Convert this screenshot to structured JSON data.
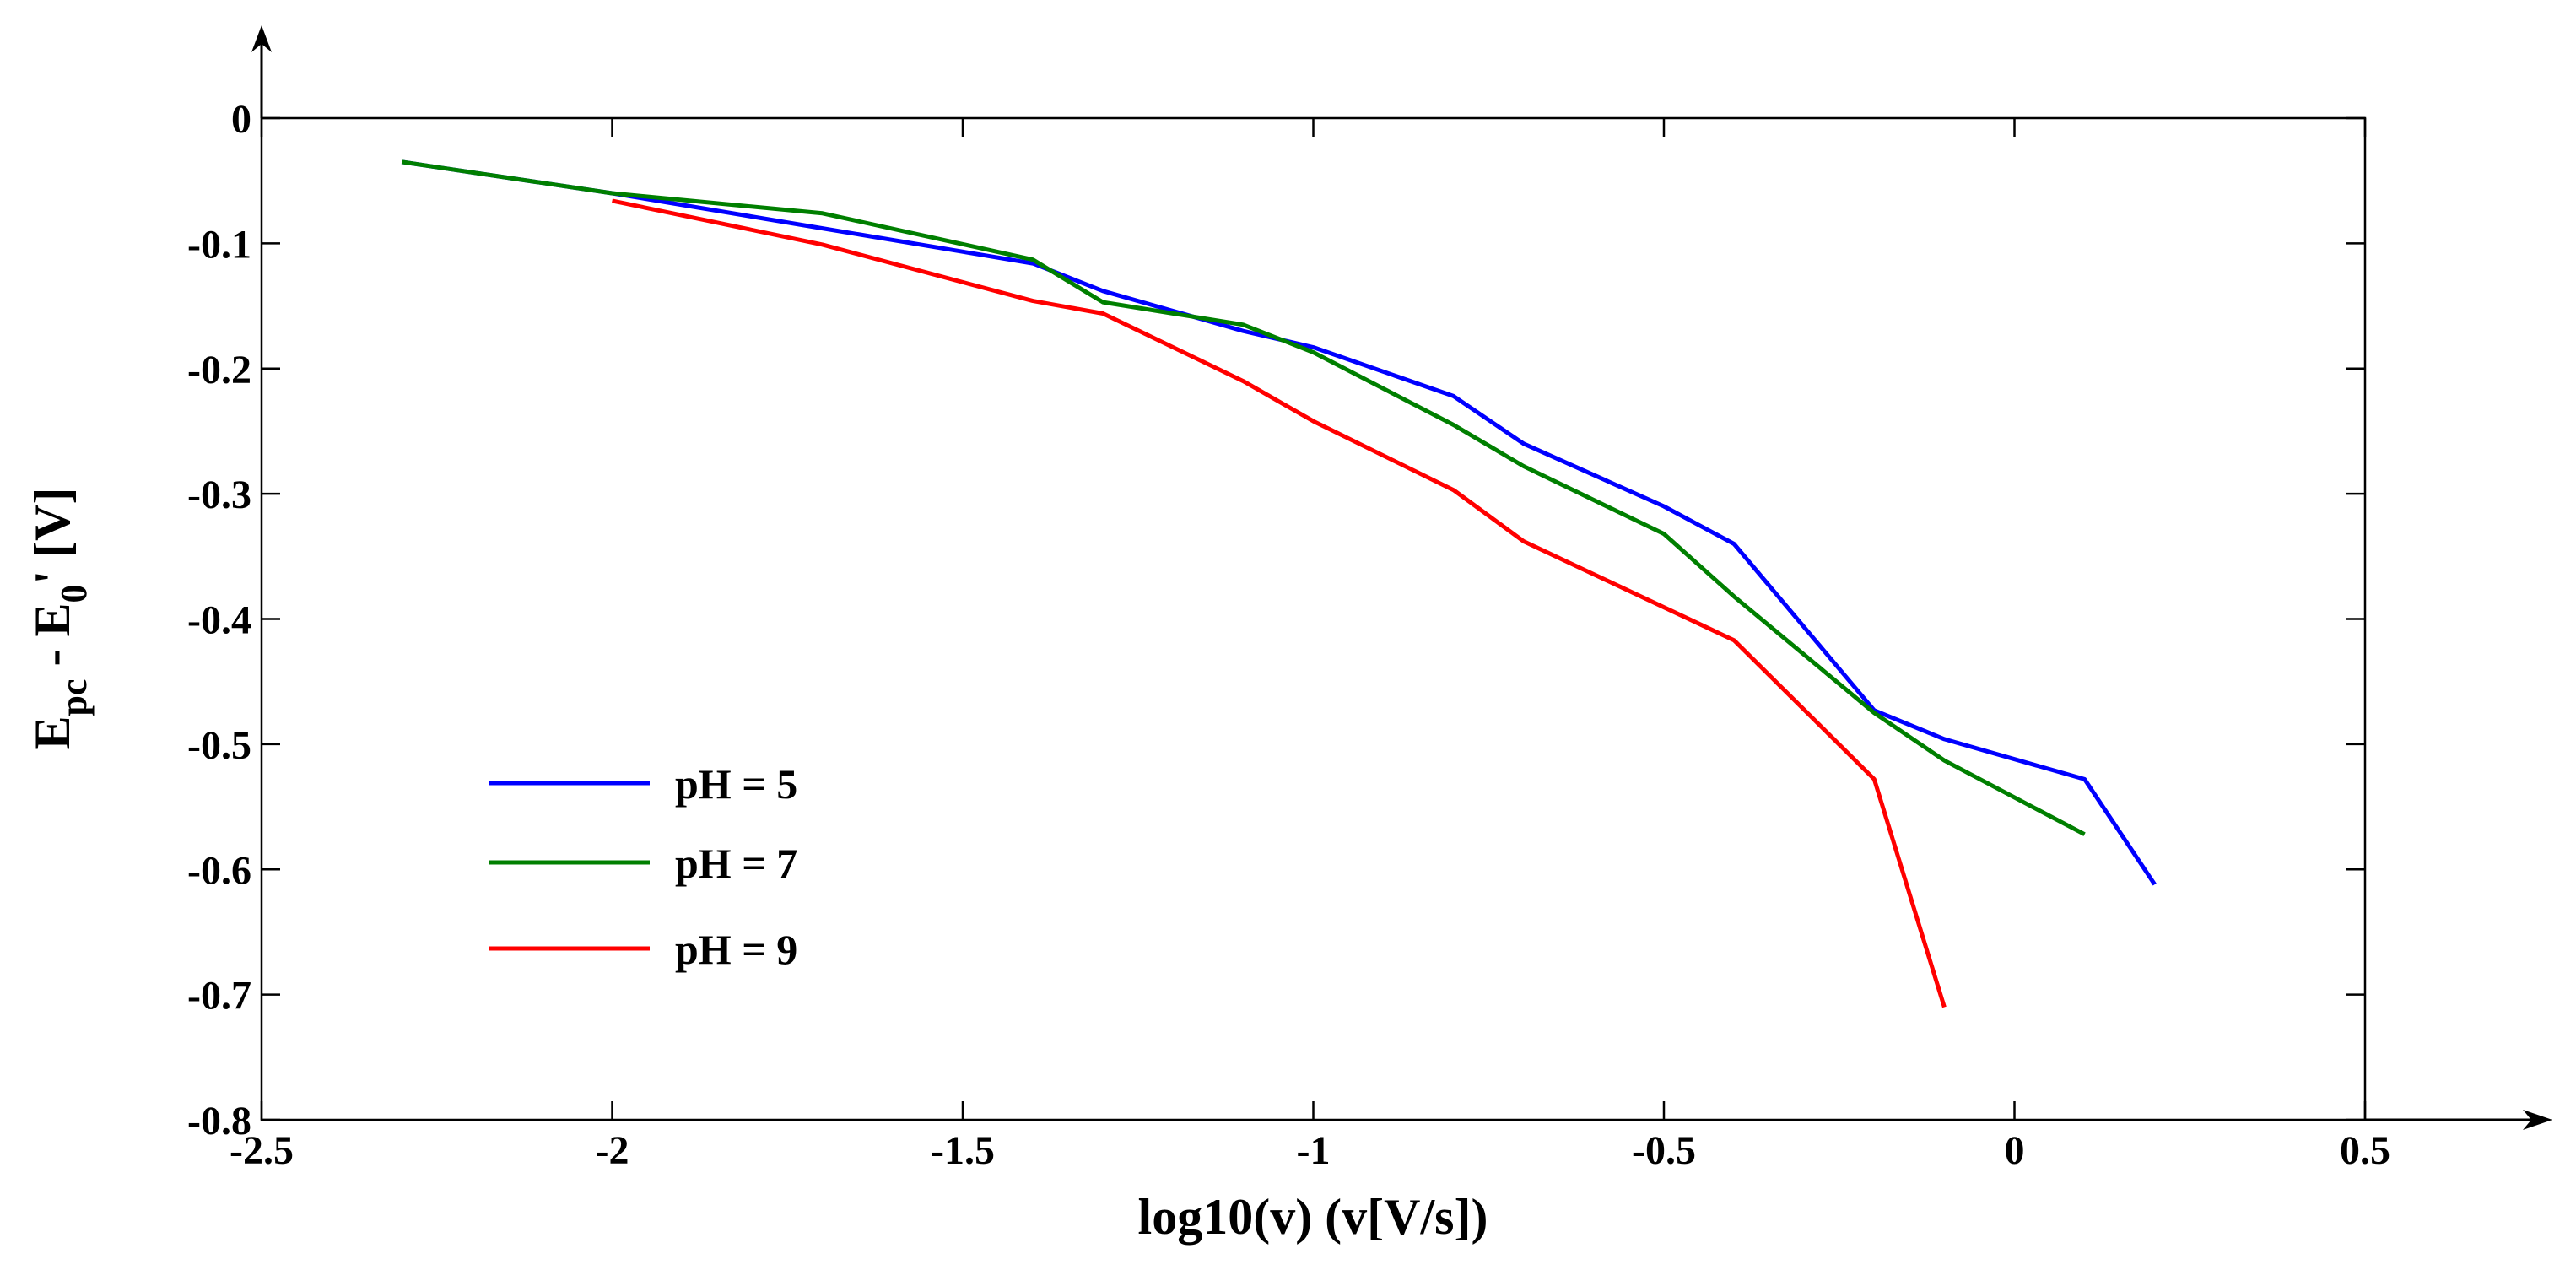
{
  "chart_data": {
    "type": "line",
    "title": "",
    "xlabel": "log10(v) (v[V/s])",
    "ylabel": {
      "main": "E",
      "sub1": "pc",
      "middle": " - E",
      "sub2": "0",
      "end": "' [V]"
    },
    "xlim": [
      -2.5,
      0.5
    ],
    "ylim": [
      -0.8,
      0
    ],
    "xticks": [
      -2.5,
      -2,
      -1.5,
      -1,
      -0.5,
      0,
      0.5
    ],
    "yticks": [
      0,
      -0.1,
      -0.2,
      -0.3,
      -0.4,
      -0.5,
      -0.6,
      -0.7,
      -0.8
    ],
    "xtick_labels": [
      "-2.5",
      "-2",
      "-1.5",
      "-1",
      "-0.5",
      "0",
      "0.5"
    ],
    "ytick_labels": [
      "0",
      "-0.1",
      "-0.2",
      "-0.3",
      "-0.4",
      "-0.5",
      "-0.6",
      "-0.7",
      "-0.8"
    ],
    "grid": false,
    "legend_position": "bottom-left",
    "series": [
      {
        "name": "pH = 5",
        "color": "#0000ff",
        "x": [
          -2.3,
          -2.0,
          -1.7,
          -1.4,
          -1.3,
          -1.1,
          -1.0,
          -0.8,
          -0.7,
          -0.5,
          -0.4,
          -0.2,
          -0.1,
          0.1,
          0.2
        ],
        "y": [
          -0.035,
          -0.06,
          -0.088,
          -0.116,
          -0.138,
          -0.17,
          -0.183,
          -0.222,
          -0.26,
          -0.31,
          -0.34,
          -0.473,
          -0.496,
          -0.528,
          -0.612
        ]
      },
      {
        "name": "pH = 7",
        "color": "#007f00",
        "x": [
          -2.3,
          -2.0,
          -1.7,
          -1.4,
          -1.3,
          -1.1,
          -1.0,
          -0.8,
          -0.7,
          -0.5,
          -0.4,
          -0.2,
          -0.1,
          0.1
        ],
        "y": [
          -0.035,
          -0.06,
          -0.076,
          -0.113,
          -0.147,
          -0.165,
          -0.187,
          -0.245,
          -0.278,
          -0.332,
          -0.382,
          -0.475,
          -0.513,
          -0.572
        ]
      },
      {
        "name": "pH = 9",
        "color": "#ff0000",
        "x": [
          -2.0,
          -1.7,
          -1.4,
          -1.3,
          -1.1,
          -1.0,
          -0.8,
          -0.7,
          -0.4,
          -0.2,
          -0.1
        ],
        "y": [
          -0.066,
          -0.101,
          -0.146,
          -0.156,
          -0.21,
          -0.242,
          -0.297,
          -0.338,
          -0.417,
          -0.528,
          -0.71
        ]
      }
    ]
  }
}
